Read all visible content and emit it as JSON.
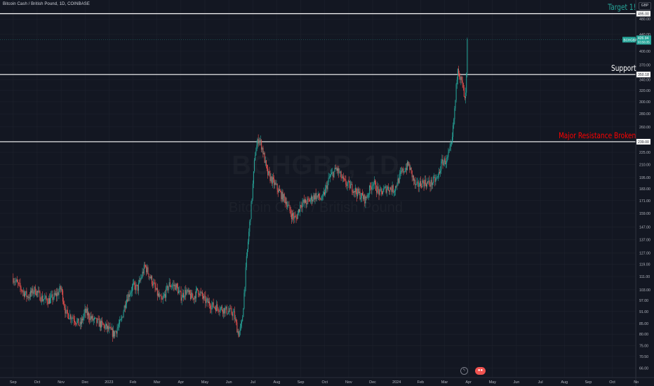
{
  "header": {
    "title": "Bitcoin Cash / British Pound, 1D, COINBASE",
    "currency": "GBP"
  },
  "watermark": {
    "symbol": "BCHGBP, 1D",
    "description": "Bitcoin Cash / British Pound"
  },
  "annotations": {
    "target": {
      "text": "Target 1!",
      "color": "#26a69a"
    },
    "support": {
      "text": "Support",
      "color": "#ffffff"
    },
    "resistance": {
      "text": "Major Resistance Broken",
      "color": "#ff0000"
    }
  },
  "price_badges": {
    "current": {
      "symbol": "BCHGBP",
      "price": "426.94",
      "countdown": "03:56:35",
      "color": "#26a69a"
    },
    "support_label": "350.18",
    "resistance_label": "239.00",
    "target_label": "495.00"
  },
  "events": {
    "split_icon": "lightning-icon",
    "events_icon": "events-icon"
  },
  "colors": {
    "background": "#131722",
    "up": "#26a69a",
    "down": "#ef5350",
    "grid": "#1e222d",
    "axis_text": "#b2b5be"
  },
  "chart_data": {
    "type": "candlestick",
    "title": "Bitcoin Cash / British Pound, 1D, COINBASE",
    "ylabel": "GBP",
    "y_scale": "log",
    "ylim": [
      63,
      510
    ],
    "y_ticks": [
      "495.00",
      "480.00",
      "440.00",
      "400.00",
      "370.00",
      "340.00",
      "320.00",
      "300.00",
      "280.00",
      "260.00",
      "239.00",
      "225.00",
      "210.00",
      "195.00",
      "183.00",
      "171.00",
      "159.00",
      "147.00",
      "137.00",
      "127.00",
      "119.00",
      "111.00",
      "103.00",
      "97.00",
      "91.00",
      "85.00",
      "80.00",
      "75.00",
      "70.50",
      "66.00"
    ],
    "y_tick_values": [
      495,
      480,
      440,
      400,
      370,
      340,
      320,
      300,
      280,
      260,
      239,
      225,
      210,
      195,
      183,
      171,
      159,
      147,
      137,
      127,
      119,
      111,
      103,
      97,
      91,
      85,
      80,
      75,
      70.5,
      66
    ],
    "x_ticks": [
      "Sep",
      "Oct",
      "Nov",
      "Dec",
      "2023",
      "Feb",
      "Mar",
      "Apr",
      "May",
      "Jun",
      "Jul",
      "Aug",
      "Sep",
      "Oct",
      "Nov",
      "Dec",
      "2024",
      "Feb",
      "Mar",
      "Apr",
      "May",
      "Jun",
      "Jul",
      "Aug",
      "Sep",
      "Oct",
      "No"
    ],
    "x_range_months": [
      -0.55,
      25.95
    ],
    "last_candle_month": 18.95,
    "horizontal_lines": [
      {
        "label": "Target 1!",
        "price": 495
      },
      {
        "label": "Support",
        "price": 350.18
      },
      {
        "label": "Major Resistance Broken",
        "price": 239
      }
    ],
    "current_price": 426.94,
    "price_path": [
      [
        0.0,
        110
      ],
      [
        0.3,
        104
      ],
      [
        0.6,
        99
      ],
      [
        0.9,
        103
      ],
      [
        1.2,
        98
      ],
      [
        1.5,
        97
      ],
      [
        1.8,
        100
      ],
      [
        2.0,
        104
      ],
      [
        2.2,
        90
      ],
      [
        2.5,
        88
      ],
      [
        2.8,
        84
      ],
      [
        3.0,
        91
      ],
      [
        3.3,
        87
      ],
      [
        3.6,
        85
      ],
      [
        3.9,
        83
      ],
      [
        4.2,
        80
      ],
      [
        4.5,
        86
      ],
      [
        4.7,
        97
      ],
      [
        5.0,
        105
      ],
      [
        5.2,
        104
      ],
      [
        5.5,
        118
      ],
      [
        5.8,
        108
      ],
      [
        6.0,
        101
      ],
      [
        6.2,
        96
      ],
      [
        6.5,
        106
      ],
      [
        6.8,
        105
      ],
      [
        7.0,
        99
      ],
      [
        7.2,
        102
      ],
      [
        7.5,
        98
      ],
      [
        7.7,
        103
      ],
      [
        8.0,
        97
      ],
      [
        8.3,
        94
      ],
      [
        8.6,
        93
      ],
      [
        9.0,
        91
      ],
      [
        9.2,
        90
      ],
      [
        9.4,
        80
      ],
      [
        9.55,
        85
      ],
      [
        9.75,
        125
      ],
      [
        9.95,
        170
      ],
      [
        10.1,
        225
      ],
      [
        10.25,
        245
      ],
      [
        10.4,
        230
      ],
      [
        10.6,
        200
      ],
      [
        10.9,
        188
      ],
      [
        11.2,
        176
      ],
      [
        11.4,
        170
      ],
      [
        11.6,
        158
      ],
      [
        11.8,
        154
      ],
      [
        12.0,
        168
      ],
      [
        12.3,
        170
      ],
      [
        12.6,
        176
      ],
      [
        12.9,
        172
      ],
      [
        13.2,
        195
      ],
      [
        13.5,
        205
      ],
      [
        13.8,
        190
      ],
      [
        14.1,
        185
      ],
      [
        14.4,
        178
      ],
      [
        14.7,
        172
      ],
      [
        15.0,
        190
      ],
      [
        15.3,
        178
      ],
      [
        15.6,
        184
      ],
      [
        15.9,
        182
      ],
      [
        16.2,
        200
      ],
      [
        16.5,
        210
      ],
      [
        16.8,
        185
      ],
      [
        17.1,
        190
      ],
      [
        17.4,
        188
      ],
      [
        17.7,
        194
      ],
      [
        17.9,
        213
      ],
      [
        18.1,
        215
      ],
      [
        18.3,
        235
      ],
      [
        18.45,
        300
      ],
      [
        18.55,
        370
      ],
      [
        18.65,
        345
      ],
      [
        18.75,
        330
      ],
      [
        18.85,
        300
      ],
      [
        18.9,
        320
      ],
      [
        18.95,
        426.94
      ]
    ]
  }
}
